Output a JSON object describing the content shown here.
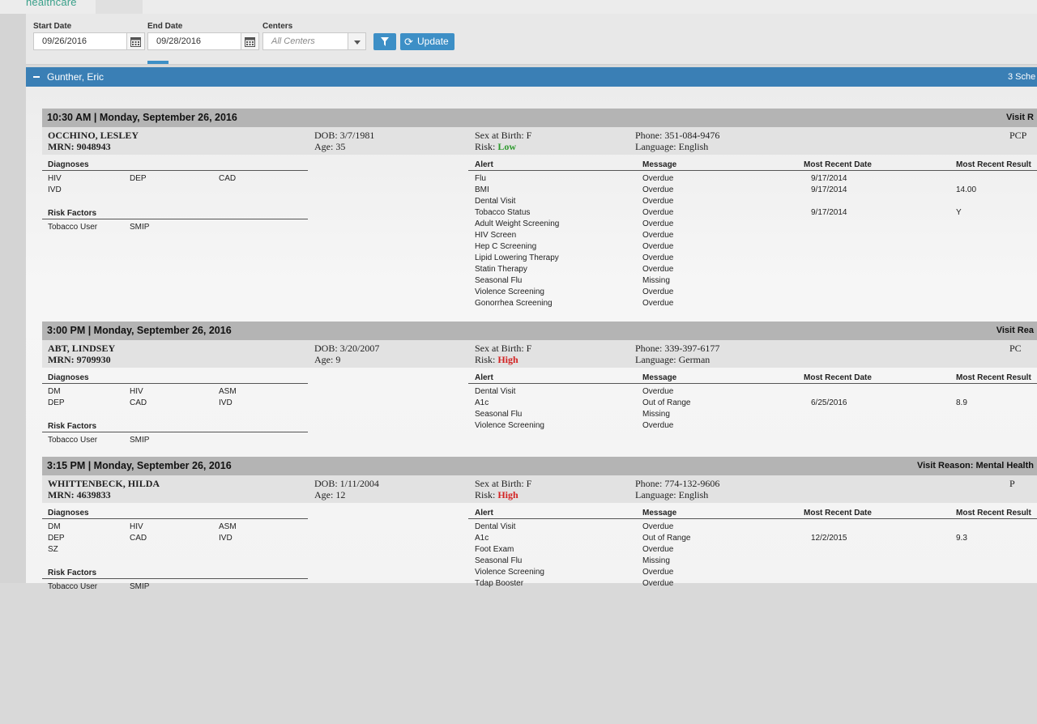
{
  "header": {
    "logo_text": "healthcare"
  },
  "filters": {
    "start_label": "Start Date",
    "start_value": "09/26/2016",
    "end_label": "End Date",
    "end_value": "09/28/2016",
    "centers_label": "Centers",
    "centers_placeholder": "All Centers",
    "update_label": "Update"
  },
  "provider": {
    "name": "Gunther, Eric",
    "count_text": "3 Sche"
  },
  "labels": {
    "diagnoses": "Diagnoses",
    "risk_factors": "Risk Factors",
    "alert": "Alert",
    "message": "Message",
    "most_recent_date": "Most Recent Date",
    "most_recent_result": "Most Recent Result"
  },
  "colors": {
    "brand": "#3aa08a",
    "accent": "#3d8fc6",
    "provider_bar": "#3a7fb5",
    "risk_low": "#2e9a2e",
    "risk_high": "#d32222"
  },
  "appointments": [
    {
      "time": "10:30 AM | Monday, September 26, 2016",
      "reason": "Visit R",
      "name": "OCCHINO, LESLEY",
      "mrn": "MRN: 9048943",
      "dob": "DOB: 3/7/1981",
      "age": "Age: 35",
      "sex": "Sex at Birth: F",
      "risk_label": "Risk:",
      "risk_value": "Low",
      "risk_level": "low",
      "phone": "Phone: 351-084-9476",
      "language": "Language: English",
      "pcp": "PCP",
      "diagnoses": [
        [
          "HIV",
          "DEP",
          "CAD"
        ],
        [
          "IVD",
          "",
          ""
        ]
      ],
      "risk_factors": [
        "Tobacco User",
        "SMIP"
      ],
      "alerts": [
        {
          "alert": "Flu",
          "message": "Overdue",
          "date": "9/17/2014",
          "result": ""
        },
        {
          "alert": "BMI",
          "message": "Overdue",
          "date": "9/17/2014",
          "result": "14.00"
        },
        {
          "alert": "Dental Visit",
          "message": "Overdue",
          "date": "",
          "result": ""
        },
        {
          "alert": "Tobacco Status",
          "message": "Overdue",
          "date": "9/17/2014",
          "result": "Y"
        },
        {
          "alert": "Adult Weight Screening",
          "message": "Overdue",
          "date": "",
          "result": ""
        },
        {
          "alert": "HIV Screen",
          "message": "Overdue",
          "date": "",
          "result": ""
        },
        {
          "alert": "Hep C Screening",
          "message": "Overdue",
          "date": "",
          "result": ""
        },
        {
          "alert": "Lipid Lowering Therapy",
          "message": "Overdue",
          "date": "",
          "result": ""
        },
        {
          "alert": "Statin Therapy",
          "message": "Overdue",
          "date": "",
          "result": ""
        },
        {
          "alert": "Seasonal Flu",
          "message": "Missing",
          "date": "",
          "result": ""
        },
        {
          "alert": "Violence Screening",
          "message": "Overdue",
          "date": "",
          "result": ""
        },
        {
          "alert": "Gonorrhea Screening",
          "message": "Overdue",
          "date": "",
          "result": ""
        }
      ]
    },
    {
      "time": "3:00 PM | Monday, September 26, 2016",
      "reason": "Visit Rea",
      "name": "ABT, LINDSEY",
      "mrn": "MRN: 9709930",
      "dob": "DOB: 3/20/2007",
      "age": "Age: 9",
      "sex": "Sex at Birth: F",
      "risk_label": "Risk:",
      "risk_value": "High",
      "risk_level": "high",
      "phone": "Phone: 339-397-6177",
      "language": "Language: German",
      "pcp": "PC",
      "diagnoses": [
        [
          "DM",
          "HIV",
          "ASM"
        ],
        [
          "DEP",
          "CAD",
          "IVD"
        ]
      ],
      "risk_factors": [
        "Tobacco User",
        "SMIP"
      ],
      "alerts": [
        {
          "alert": "Dental Visit",
          "message": "Overdue",
          "date": "",
          "result": ""
        },
        {
          "alert": "A1c",
          "message": "Out of Range",
          "date": "6/25/2016",
          "result": "8.9"
        },
        {
          "alert": "Seasonal Flu",
          "message": "Missing",
          "date": "",
          "result": ""
        },
        {
          "alert": "Violence Screening",
          "message": "Overdue",
          "date": "",
          "result": ""
        }
      ]
    },
    {
      "time": "3:15 PM | Monday, September 26, 2016",
      "reason": "Visit Reason: Mental Health",
      "name": "WHITTENBECK, HILDA",
      "mrn": "MRN: 4639833",
      "dob": "DOB: 1/11/2004",
      "age": "Age: 12",
      "sex": "Sex at Birth: F",
      "risk_label": "Risk:",
      "risk_value": "High",
      "risk_level": "high",
      "phone": "Phone: 774-132-9606",
      "language": "Language: English",
      "pcp": "P",
      "diagnoses": [
        [
          "DM",
          "HIV",
          "ASM"
        ],
        [
          "DEP",
          "CAD",
          "IVD"
        ],
        [
          "SZ",
          "",
          ""
        ]
      ],
      "risk_factors": [
        "Tobacco User",
        "SMIP"
      ],
      "alerts": [
        {
          "alert": "Dental Visit",
          "message": "Overdue",
          "date": "",
          "result": ""
        },
        {
          "alert": "A1c",
          "message": "Out of Range",
          "date": "12/2/2015",
          "result": "9.3"
        },
        {
          "alert": "Foot Exam",
          "message": "Overdue",
          "date": "",
          "result": ""
        },
        {
          "alert": "Seasonal Flu",
          "message": "Missing",
          "date": "",
          "result": ""
        },
        {
          "alert": "Violence Screening",
          "message": "Overdue",
          "date": "",
          "result": ""
        },
        {
          "alert": "Tdap Booster",
          "message": "Overdue",
          "date": "",
          "result": ""
        }
      ]
    }
  ]
}
